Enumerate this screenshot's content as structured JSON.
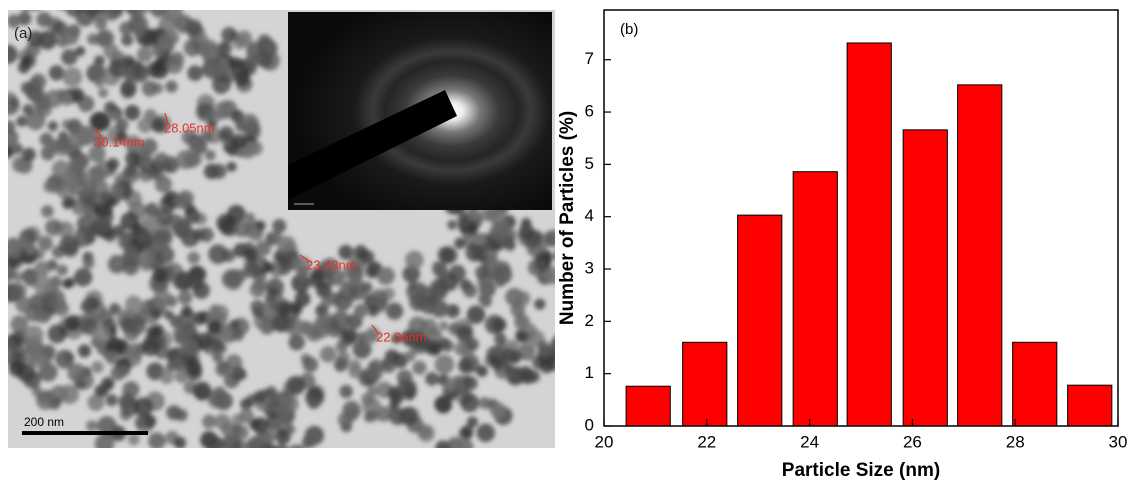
{
  "image": {
    "panel_label": "(a)",
    "annotations": [
      "30.14nm",
      "28.05nm",
      "23.43nm",
      "22.06nm"
    ],
    "scale_bar": "200 nm"
  },
  "chart_data": {
    "type": "bar",
    "panel_label": "(b)",
    "x_label": "Particle Size (nm)",
    "y_label": "Number of Particles (%)",
    "x": [
      20.86,
      21.96,
      23.03,
      24.11,
      25.16,
      26.25,
      27.31,
      28.38,
      29.45
    ],
    "values": [
      0.76,
      1.6,
      4.03,
      4.86,
      7.32,
      5.66,
      6.52,
      1.6,
      0.78
    ],
    "color": "#ff0000",
    "xlim": [
      20,
      30
    ],
    "xticks": [
      20,
      22,
      24,
      26,
      28,
      30
    ],
    "ylim": [
      0,
      7.95
    ],
    "yticks": [
      0,
      1,
      2,
      3,
      4,
      5,
      6,
      7
    ]
  }
}
